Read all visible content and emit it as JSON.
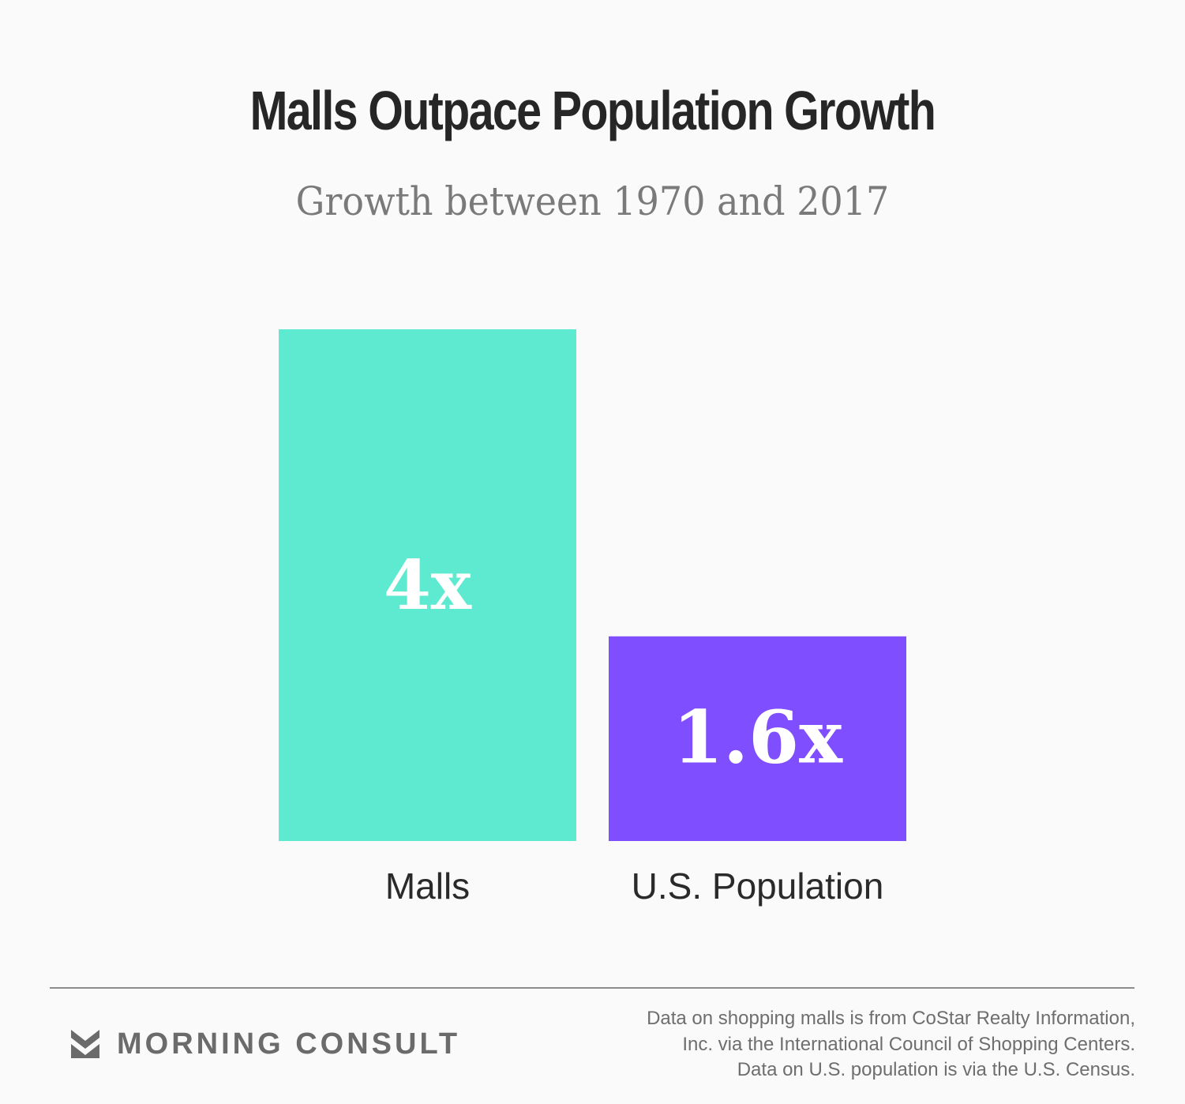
{
  "chart_data": {
    "type": "bar",
    "title": "Malls Outpace Population Growth",
    "subtitle": "Growth between 1970 and 2017",
    "categories": [
      "Malls",
      "U.S. Population"
    ],
    "values": [
      4,
      1.6
    ],
    "value_labels": [
      "4x",
      "1.6x"
    ],
    "colors": [
      "#5dead0",
      "#7f4efe"
    ],
    "grid": false,
    "legend": "none"
  },
  "footer": {
    "brand": "MORNING CONSULT",
    "brand_icon": "morning-consult-logo-icon",
    "source_lines": [
      "Data on shopping malls is from CoStar Realty Information,",
      "Inc. via the International Council of Shopping Centers.",
      "Data on U.S. population is via the U.S. Census."
    ]
  }
}
